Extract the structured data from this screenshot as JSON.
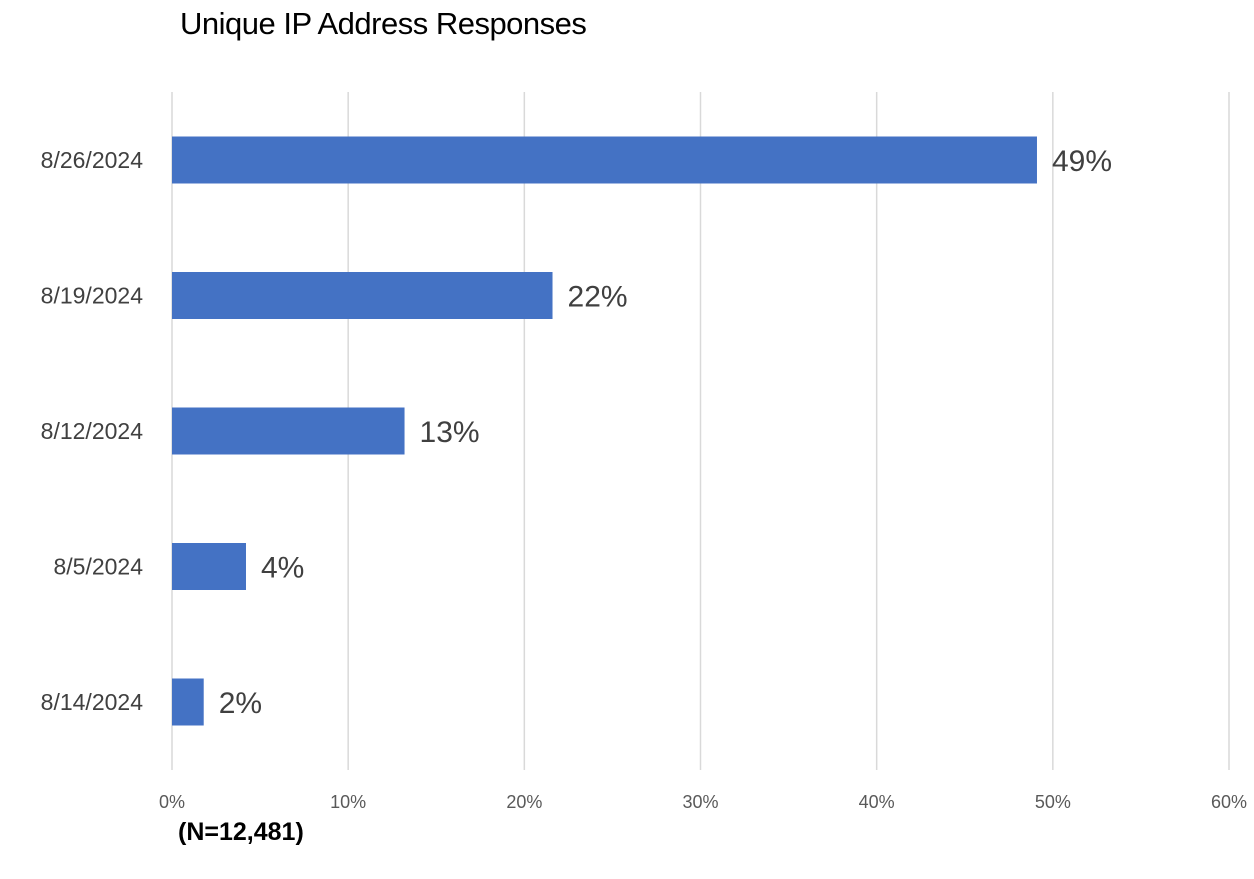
{
  "chart_data": {
    "type": "bar",
    "orientation": "horizontal",
    "title": "Unique IP Address Responses",
    "footnote": "(N=12,481)",
    "categories": [
      "8/26/2024",
      "8/19/2024",
      "8/12/2024",
      "8/5/2024",
      "8/14/2024"
    ],
    "values": [
      49.1,
      21.6,
      13.2,
      4.2,
      1.8
    ],
    "data_labels": [
      "49%",
      "22%",
      "13%",
      "4%",
      "2%"
    ],
    "x_ticks": [
      "0%",
      "10%",
      "20%",
      "30%",
      "40%",
      "50%",
      "60%"
    ],
    "xlim": [
      0,
      60
    ],
    "xlabel": "",
    "ylabel": "",
    "grid": "vertical",
    "legend": "none",
    "bar_color": "#4472C4",
    "grid_color": "#D9D9D9"
  }
}
